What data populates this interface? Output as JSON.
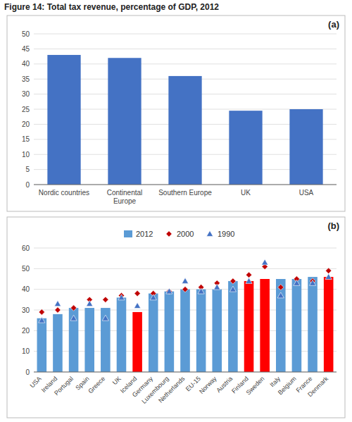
{
  "title": "Figure 14: Total tax revenue, percentage of GDP, 2012",
  "chart_data": [
    {
      "type": "bar",
      "annotations": [
        "(a)"
      ],
      "categories": [
        "Nordic countries",
        "Continental\nEurope",
        "Southern Europe",
        "UK",
        "USA"
      ],
      "values": [
        43,
        42,
        36,
        24.5,
        25
      ],
      "color": "#4472C4",
      "ylim": [
        0,
        50
      ],
      "yticks": [
        0,
        5,
        10,
        15,
        20,
        25,
        30,
        35,
        40,
        45,
        50
      ],
      "grid": true
    },
    {
      "type": "bar",
      "annotations": [
        "(b)"
      ],
      "categories": [
        "USA",
        "Ireland",
        "Portugal",
        "Spain",
        "Greece",
        "UK",
        "Iceland",
        "Germany",
        "Luxembourg",
        "Netherlands",
        "EU-15",
        "Norway",
        "Austria",
        "Finland",
        "Sweden",
        "Italy",
        "Belgium",
        "France",
        "Denmark"
      ],
      "series": [
        {
          "name": "2012",
          "type": "bar",
          "color": "#5B9BD5",
          "colors": [
            "#5B9BD5",
            "#5B9BD5",
            "#5B9BD5",
            "#5B9BD5",
            "#5B9BD5",
            "#5B9BD5",
            "#FF0000",
            "#5B9BD5",
            "#5B9BD5",
            "#5B9BD5",
            "#5B9BD5",
            "#5B9BD5",
            "#5B9BD5",
            "#FF0000",
            "#FF0000",
            "#5B9BD5",
            "#5B9BD5",
            "#5B9BD5",
            "#FF0000"
          ],
          "values": [
            26,
            28,
            31,
            31,
            31,
            36,
            29,
            38,
            39,
            40,
            40,
            40,
            44,
            44,
            45,
            45,
            45,
            46,
            46
          ]
        },
        {
          "name": "2000",
          "type": "scatter",
          "marker": "diamond",
          "color": "#C00000",
          "values": [
            29,
            30,
            31,
            35,
            35,
            37,
            38,
            38,
            39,
            40,
            41,
            43,
            44,
            47,
            51,
            41,
            45,
            44,
            49
          ]
        },
        {
          "name": "1990",
          "type": "scatter",
          "marker": "triangle",
          "color": "#4472C4",
          "values": [
            25,
            33,
            26,
            33,
            26,
            36,
            32,
            36,
            39,
            44,
            39,
            41,
            40,
            44,
            53,
            37,
            43,
            43,
            46
          ]
        }
      ],
      "ylim": [
        0,
        60
      ],
      "yticks": [
        0,
        10,
        20,
        30,
        40,
        50,
        60
      ],
      "grid": true,
      "legend": "top"
    }
  ]
}
